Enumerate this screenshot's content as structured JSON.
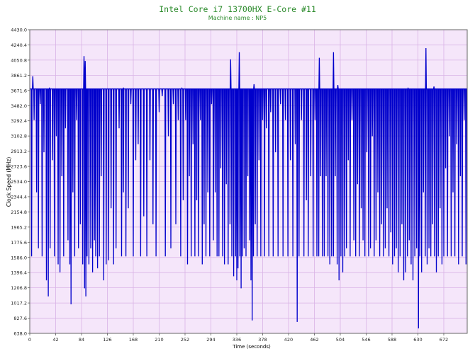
{
  "chart_data": {
    "type": "line",
    "title": "Intel Core i7 13700HX E-Core #11",
    "subtitle": "Machine name : NP5",
    "xlabel": "Time (seconds)",
    "ylabel": "Clock Speed (MHz)",
    "xlim": [
      0,
      710
    ],
    "ylim": [
      638.0,
      4430.0
    ],
    "x_ticks": [
      0,
      42,
      84,
      126,
      168,
      210,
      252,
      294,
      336,
      378,
      420,
      462,
      504,
      546,
      588,
      630,
      672
    ],
    "x_tick_labels": [
      "0",
      "42",
      "84",
      "126",
      "168",
      "210",
      "252",
      "294",
      "336",
      "378",
      "420",
      "462",
      "504",
      "546",
      "588",
      "630",
      "672"
    ],
    "y_ticks": [
      638.0,
      827.6,
      1017.2,
      1206.8,
      1396.4,
      1586.0,
      1775.6,
      1965.2,
      2154.8,
      2344.4,
      2534.0,
      2723.6,
      2913.2,
      3102.8,
      3292.4,
      3482.0,
      3671.6,
      3861.2,
      4050.8,
      4240.4,
      4430.0
    ],
    "y_tick_labels": [
      "638.0",
      "827.6",
      "1017.2",
      "1206.8",
      "1396.4",
      "1586.0",
      "1775.6",
      "1965.2",
      "2154.8",
      "2344.4",
      "2534.0",
      "2723.6",
      "2913.2",
      "3102.8",
      "3292.4",
      "3482.0",
      "3671.6",
      "3861.2",
      "4050.8",
      "4240.4",
      "4430.0"
    ],
    "grid": true,
    "background": "#f5e6fa",
    "grid_color": "#d9b3e6",
    "series": [
      {
        "color": "#0000cc",
        "baseline": 3690,
        "dips": [
          [
            3,
            1600
          ],
          [
            7,
            3300
          ],
          [
            11,
            2400
          ],
          [
            14,
            1700
          ],
          [
            17,
            3500
          ],
          [
            20,
            1600
          ],
          [
            23,
            2900
          ],
          [
            27,
            1300
          ],
          [
            30,
            1100
          ],
          [
            33,
            1700
          ],
          [
            37,
            2800
          ],
          [
            40,
            1600
          ],
          [
            43,
            3100
          ],
          [
            46,
            1500
          ],
          [
            49,
            1400
          ],
          [
            52,
            2600
          ],
          [
            55,
            1600
          ],
          [
            58,
            3200
          ],
          [
            62,
            1800
          ],
          [
            65,
            1500
          ],
          [
            67,
            1000
          ],
          [
            70,
            2400
          ],
          [
            73,
            1600
          ],
          [
            76,
            3300
          ],
          [
            79,
            1700
          ],
          [
            82,
            2000
          ],
          [
            86,
            1500
          ],
          [
            89,
            1200
          ],
          [
            91,
            1100
          ],
          [
            93,
            1600
          ],
          [
            96,
            1500
          ],
          [
            99,
            1700
          ],
          [
            102,
            1400
          ],
          [
            105,
            1800
          ],
          [
            107,
            1600
          ],
          [
            110,
            1450
          ],
          [
            113,
            1600
          ],
          [
            116,
            2600
          ],
          [
            120,
            1300
          ],
          [
            124,
            1500
          ],
          [
            128,
            1550
          ],
          [
            132,
            2200
          ],
          [
            136,
            1500
          ],
          [
            140,
            1700
          ],
          [
            145,
            3200
          ],
          [
            149,
            1600
          ],
          [
            152,
            2400
          ],
          [
            156,
            1600
          ],
          [
            160,
            2200
          ],
          [
            164,
            3500
          ],
          [
            168,
            1600
          ],
          [
            172,
            2800
          ],
          [
            176,
            3000
          ],
          [
            180,
            1600
          ],
          [
            185,
            2100
          ],
          [
            190,
            1600
          ],
          [
            195,
            2800
          ],
          [
            200,
            2000
          ],
          [
            205,
            1600
          ],
          [
            210,
            3400
          ],
          [
            215,
            3600
          ],
          [
            220,
            1600
          ],
          [
            225,
            3100
          ],
          [
            229,
            1700
          ],
          [
            233,
            3500
          ],
          [
            237,
            2000
          ],
          [
            241,
            3300
          ],
          [
            245,
            1600
          ],
          [
            249,
            2300
          ],
          [
            253,
            3300
          ],
          [
            256,
            1500
          ],
          [
            259,
            2600
          ],
          [
            262,
            1600
          ],
          [
            265,
            3000
          ],
          [
            268,
            1600
          ],
          [
            271,
            2300
          ],
          [
            274,
            1600
          ],
          [
            277,
            3300
          ],
          [
            280,
            1500
          ],
          [
            283,
            2000
          ],
          [
            286,
            1600
          ],
          [
            289,
            2400
          ],
          [
            292,
            1600
          ],
          [
            295,
            3500
          ],
          [
            298,
            1800
          ],
          [
            301,
            2400
          ],
          [
            304,
            1600
          ],
          [
            307,
            1600
          ],
          [
            310,
            2700
          ],
          [
            313,
            1600
          ],
          [
            316,
            1500
          ],
          [
            319,
            2500
          ],
          [
            322,
            1500
          ],
          [
            325,
            2000
          ],
          [
            328,
            1600
          ],
          [
            331,
            1350
          ],
          [
            334,
            1600
          ],
          [
            336,
            1300
          ],
          [
            338,
            1450
          ],
          [
            341,
            1600
          ],
          [
            343,
            1200
          ],
          [
            345,
            1600
          ],
          [
            348,
            1700
          ],
          [
            351,
            1600
          ],
          [
            354,
            2600
          ],
          [
            357,
            1800
          ],
          [
            359,
            1300
          ],
          [
            361,
            800
          ],
          [
            363,
            1600
          ],
          [
            366,
            2000
          ],
          [
            369,
            1600
          ],
          [
            372,
            2800
          ],
          [
            375,
            1600
          ],
          [
            378,
            3300
          ],
          [
            381,
            1600
          ],
          [
            384,
            3200
          ],
          [
            388,
            1600
          ],
          [
            391,
            3400
          ],
          [
            395,
            1600
          ],
          [
            399,
            2900
          ],
          [
            403,
            1600
          ],
          [
            407,
            3500
          ],
          [
            411,
            1600
          ],
          [
            415,
            3300
          ],
          [
            419,
            1600
          ],
          [
            423,
            2800
          ],
          [
            427,
            1600
          ],
          [
            431,
            3000
          ],
          [
            434,
            780
          ],
          [
            437,
            1600
          ],
          [
            441,
            3300
          ],
          [
            445,
            1600
          ],
          [
            449,
            2300
          ],
          [
            452,
            1600
          ],
          [
            456,
            2600
          ],
          [
            460,
            1600
          ],
          [
            463,
            3300
          ],
          [
            466,
            1600
          ],
          [
            469,
            1600
          ],
          [
            472,
            2600
          ],
          [
            475,
            1600
          ],
          [
            478,
            1600
          ],
          [
            481,
            2600
          ],
          [
            484,
            1600
          ],
          [
            487,
            1500
          ],
          [
            490,
            1600
          ],
          [
            493,
            1600
          ],
          [
            496,
            2600
          ],
          [
            499,
            1500
          ],
          [
            502,
            1300
          ],
          [
            505,
            1600
          ],
          [
            508,
            1400
          ],
          [
            511,
            1600
          ],
          [
            514,
            1700
          ],
          [
            517,
            2800
          ],
          [
            520,
            1600
          ],
          [
            523,
            3300
          ],
          [
            526,
            1800
          ],
          [
            529,
            1600
          ],
          [
            532,
            2500
          ],
          [
            535,
            1600
          ],
          [
            538,
            2200
          ],
          [
            541,
            1800
          ],
          [
            544,
            1600
          ],
          [
            547,
            2900
          ],
          [
            550,
            1600
          ],
          [
            553,
            1700
          ],
          [
            556,
            3100
          ],
          [
            559,
            1600
          ],
          [
            562,
            1800
          ],
          [
            565,
            2400
          ],
          [
            568,
            1600
          ],
          [
            571,
            2000
          ],
          [
            574,
            1600
          ],
          [
            577,
            1700
          ],
          [
            580,
            2200
          ],
          [
            583,
            1600
          ],
          [
            586,
            1900
          ],
          [
            589,
            1500
          ],
          [
            592,
            1600
          ],
          [
            595,
            1700
          ],
          [
            598,
            1400
          ],
          [
            601,
            1600
          ],
          [
            604,
            2000
          ],
          [
            607,
            1300
          ],
          [
            610,
            1400
          ],
          [
            613,
            1600
          ],
          [
            616,
            1800
          ],
          [
            619,
            1500
          ],
          [
            622,
            1300
          ],
          [
            625,
            1600
          ],
          [
            628,
            1700
          ],
          [
            631,
            700
          ],
          [
            633,
            1600
          ],
          [
            636,
            1400
          ],
          [
            639,
            2400
          ],
          [
            642,
            1600
          ],
          [
            645,
            1500
          ],
          [
            648,
            1700
          ],
          [
            651,
            1600
          ],
          [
            654,
            2000
          ],
          [
            657,
            1600
          ],
          [
            660,
            1400
          ],
          [
            663,
            1600
          ],
          [
            666,
            2200
          ],
          [
            669,
            1500
          ],
          [
            672,
            1600
          ],
          [
            675,
            2700
          ],
          [
            678,
            1600
          ],
          [
            681,
            3100
          ],
          [
            684,
            1600
          ],
          [
            687,
            2400
          ],
          [
            690,
            1600
          ],
          [
            693,
            3000
          ],
          [
            696,
            1500
          ],
          [
            699,
            2600
          ],
          [
            702,
            1600
          ],
          [
            705,
            3300
          ],
          [
            708,
            1500
          ]
        ],
        "peaks": [
          [
            5,
            3850
          ],
          [
            32,
            3700
          ],
          [
            88,
            4100
          ],
          [
            90,
            4040
          ],
          [
            152,
            3700
          ],
          [
            247,
            3700
          ],
          [
            326,
            4060
          ],
          [
            340,
            4150
          ],
          [
            364,
            3750
          ],
          [
            470,
            4080
          ],
          [
            493,
            4150
          ],
          [
            500,
            3740
          ],
          [
            614,
            3700
          ],
          [
            643,
            4200
          ],
          [
            656,
            3720
          ]
        ]
      }
    ]
  }
}
